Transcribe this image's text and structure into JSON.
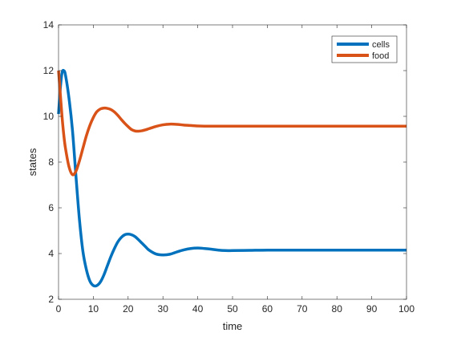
{
  "chart_data": {
    "type": "line",
    "title": "",
    "xlabel": "time",
    "ylabel": "states",
    "xlim": [
      0,
      100
    ],
    "ylim": [
      2,
      14
    ],
    "xticks": [
      0,
      10,
      20,
      30,
      40,
      50,
      60,
      70,
      80,
      90,
      100
    ],
    "yticks": [
      2,
      4,
      6,
      8,
      10,
      12,
      14
    ],
    "grid": false,
    "legend_position": "top-right",
    "series": [
      {
        "name": "cells",
        "color": "#0072BD",
        "x": [
          0,
          0.5,
          1,
          1.5,
          2,
          3,
          4,
          5,
          6,
          7,
          8,
          9,
          10,
          11,
          12,
          13,
          14,
          15,
          16,
          17,
          18,
          19,
          20,
          21,
          22,
          23,
          24,
          25,
          26,
          28,
          30,
          32,
          34,
          36,
          38,
          40,
          42,
          44,
          46,
          48,
          50,
          55,
          60,
          70,
          80,
          90,
          100
        ],
        "y": [
          10.1,
          11.2,
          11.9,
          12.0,
          11.8,
          10.8,
          9.4,
          7.4,
          5.5,
          4.1,
          3.3,
          2.8,
          2.6,
          2.6,
          2.75,
          3.05,
          3.45,
          3.85,
          4.2,
          4.5,
          4.7,
          4.82,
          4.85,
          4.82,
          4.74,
          4.6,
          4.45,
          4.3,
          4.15,
          3.98,
          3.94,
          3.97,
          4.07,
          4.16,
          4.22,
          4.24,
          4.22,
          4.19,
          4.15,
          4.13,
          4.13,
          4.14,
          4.15,
          4.15,
          4.15,
          4.15,
          4.15
        ]
      },
      {
        "name": "food",
        "color": "#D95319",
        "x": [
          0,
          0.5,
          1,
          1.5,
          2,
          3,
          4,
          5,
          6,
          7,
          8,
          9,
          10,
          11,
          12,
          13,
          14,
          15,
          16,
          17,
          18,
          19,
          20,
          21,
          22,
          23,
          24,
          25,
          26,
          28,
          30,
          32,
          34,
          36,
          38,
          40,
          42,
          44,
          46,
          48,
          50,
          55,
          60,
          70,
          80,
          90,
          100
        ],
        "y": [
          12.0,
          11.0,
          10.0,
          9.2,
          8.6,
          7.8,
          7.45,
          7.6,
          8.05,
          8.6,
          9.15,
          9.6,
          9.95,
          10.2,
          10.32,
          10.36,
          10.35,
          10.3,
          10.2,
          10.05,
          9.87,
          9.7,
          9.55,
          9.42,
          9.36,
          9.35,
          9.37,
          9.41,
          9.46,
          9.56,
          9.63,
          9.66,
          9.65,
          9.62,
          9.6,
          9.58,
          9.57,
          9.57,
          9.57,
          9.57,
          9.57,
          9.57,
          9.57,
          9.57,
          9.57,
          9.57,
          9.57
        ]
      }
    ]
  }
}
